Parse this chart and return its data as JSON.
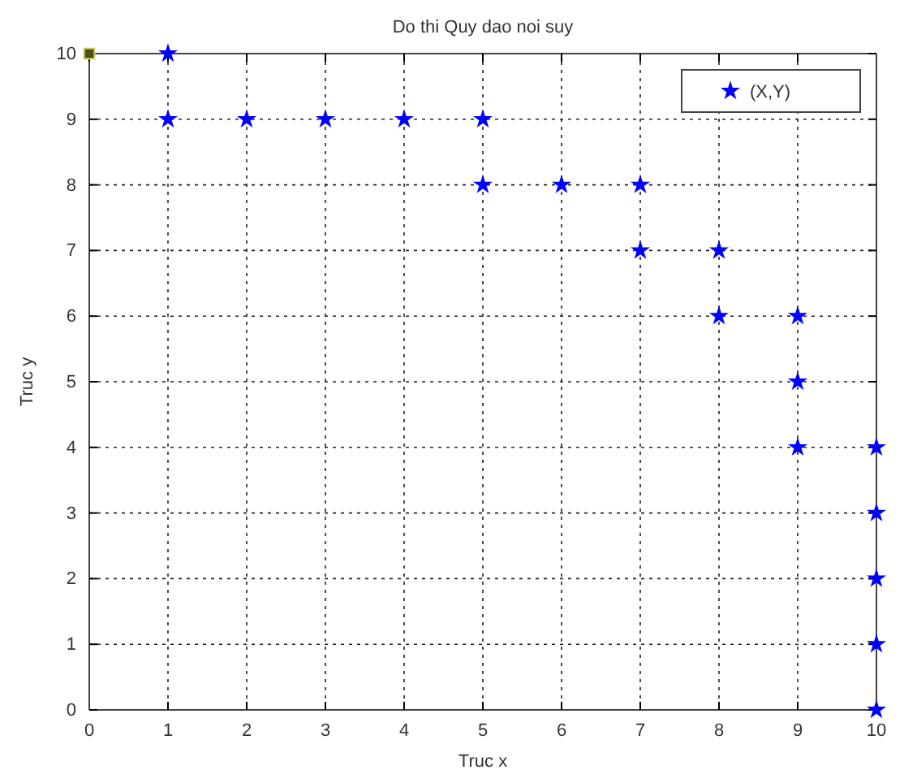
{
  "chart_data": {
    "type": "scatter",
    "title": "Do thi Quy dao noi suy",
    "xlabel": "Truc x",
    "ylabel": "Truc y",
    "xlim": [
      0,
      10
    ],
    "ylim": [
      0,
      10
    ],
    "xticks": [
      0,
      1,
      2,
      3,
      4,
      5,
      6,
      7,
      8,
      9,
      10
    ],
    "yticks": [
      0,
      1,
      2,
      3,
      4,
      5,
      6,
      7,
      8,
      9,
      10
    ],
    "grid": true,
    "legend": "top right",
    "marker": "star",
    "series": [
      {
        "name": "(X,Y)",
        "color": "#0000ff",
        "x": [
          1,
          1,
          2,
          3,
          4,
          5,
          5,
          6,
          7,
          7,
          8,
          8,
          9,
          9,
          9,
          10,
          10,
          10,
          10,
          10
        ],
        "values": [
          10,
          9,
          9,
          9,
          9,
          9,
          8,
          8,
          8,
          7,
          7,
          6,
          6,
          5,
          4,
          4,
          3,
          2,
          1,
          0
        ]
      },
      {
        "color": "#4d4d1a",
        "marker": "square",
        "x": [
          0
        ],
        "values": [
          10
        ]
      }
    ]
  }
}
